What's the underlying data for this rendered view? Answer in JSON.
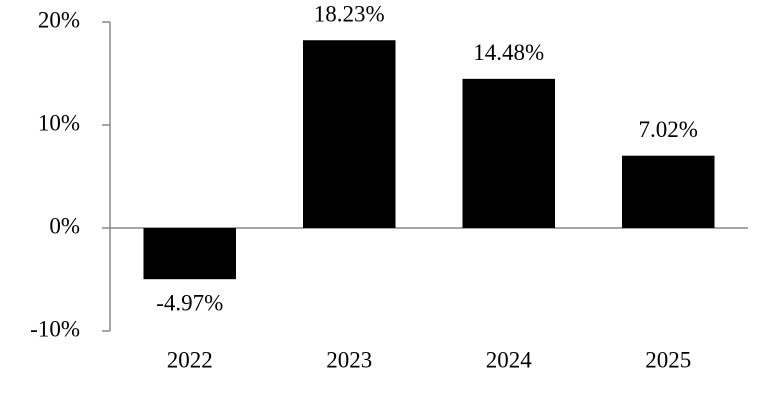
{
  "chart_data": {
    "type": "bar",
    "categories": [
      "2022",
      "2023",
      "2024",
      "2025"
    ],
    "values": [
      -4.97,
      18.23,
      14.48,
      7.02
    ],
    "value_labels": [
      "-4.97%",
      "18.23%",
      "14.48%",
      "7.02%"
    ],
    "color": "#000000",
    "ylim": [
      -10,
      20
    ],
    "yticks": [
      {
        "value": -10,
        "label": "-10%"
      },
      {
        "value": 0,
        "label": "0%"
      },
      {
        "value": 10,
        "label": "10%"
      },
      {
        "value": 20,
        "label": "20%"
      }
    ],
    "grid": false
  }
}
